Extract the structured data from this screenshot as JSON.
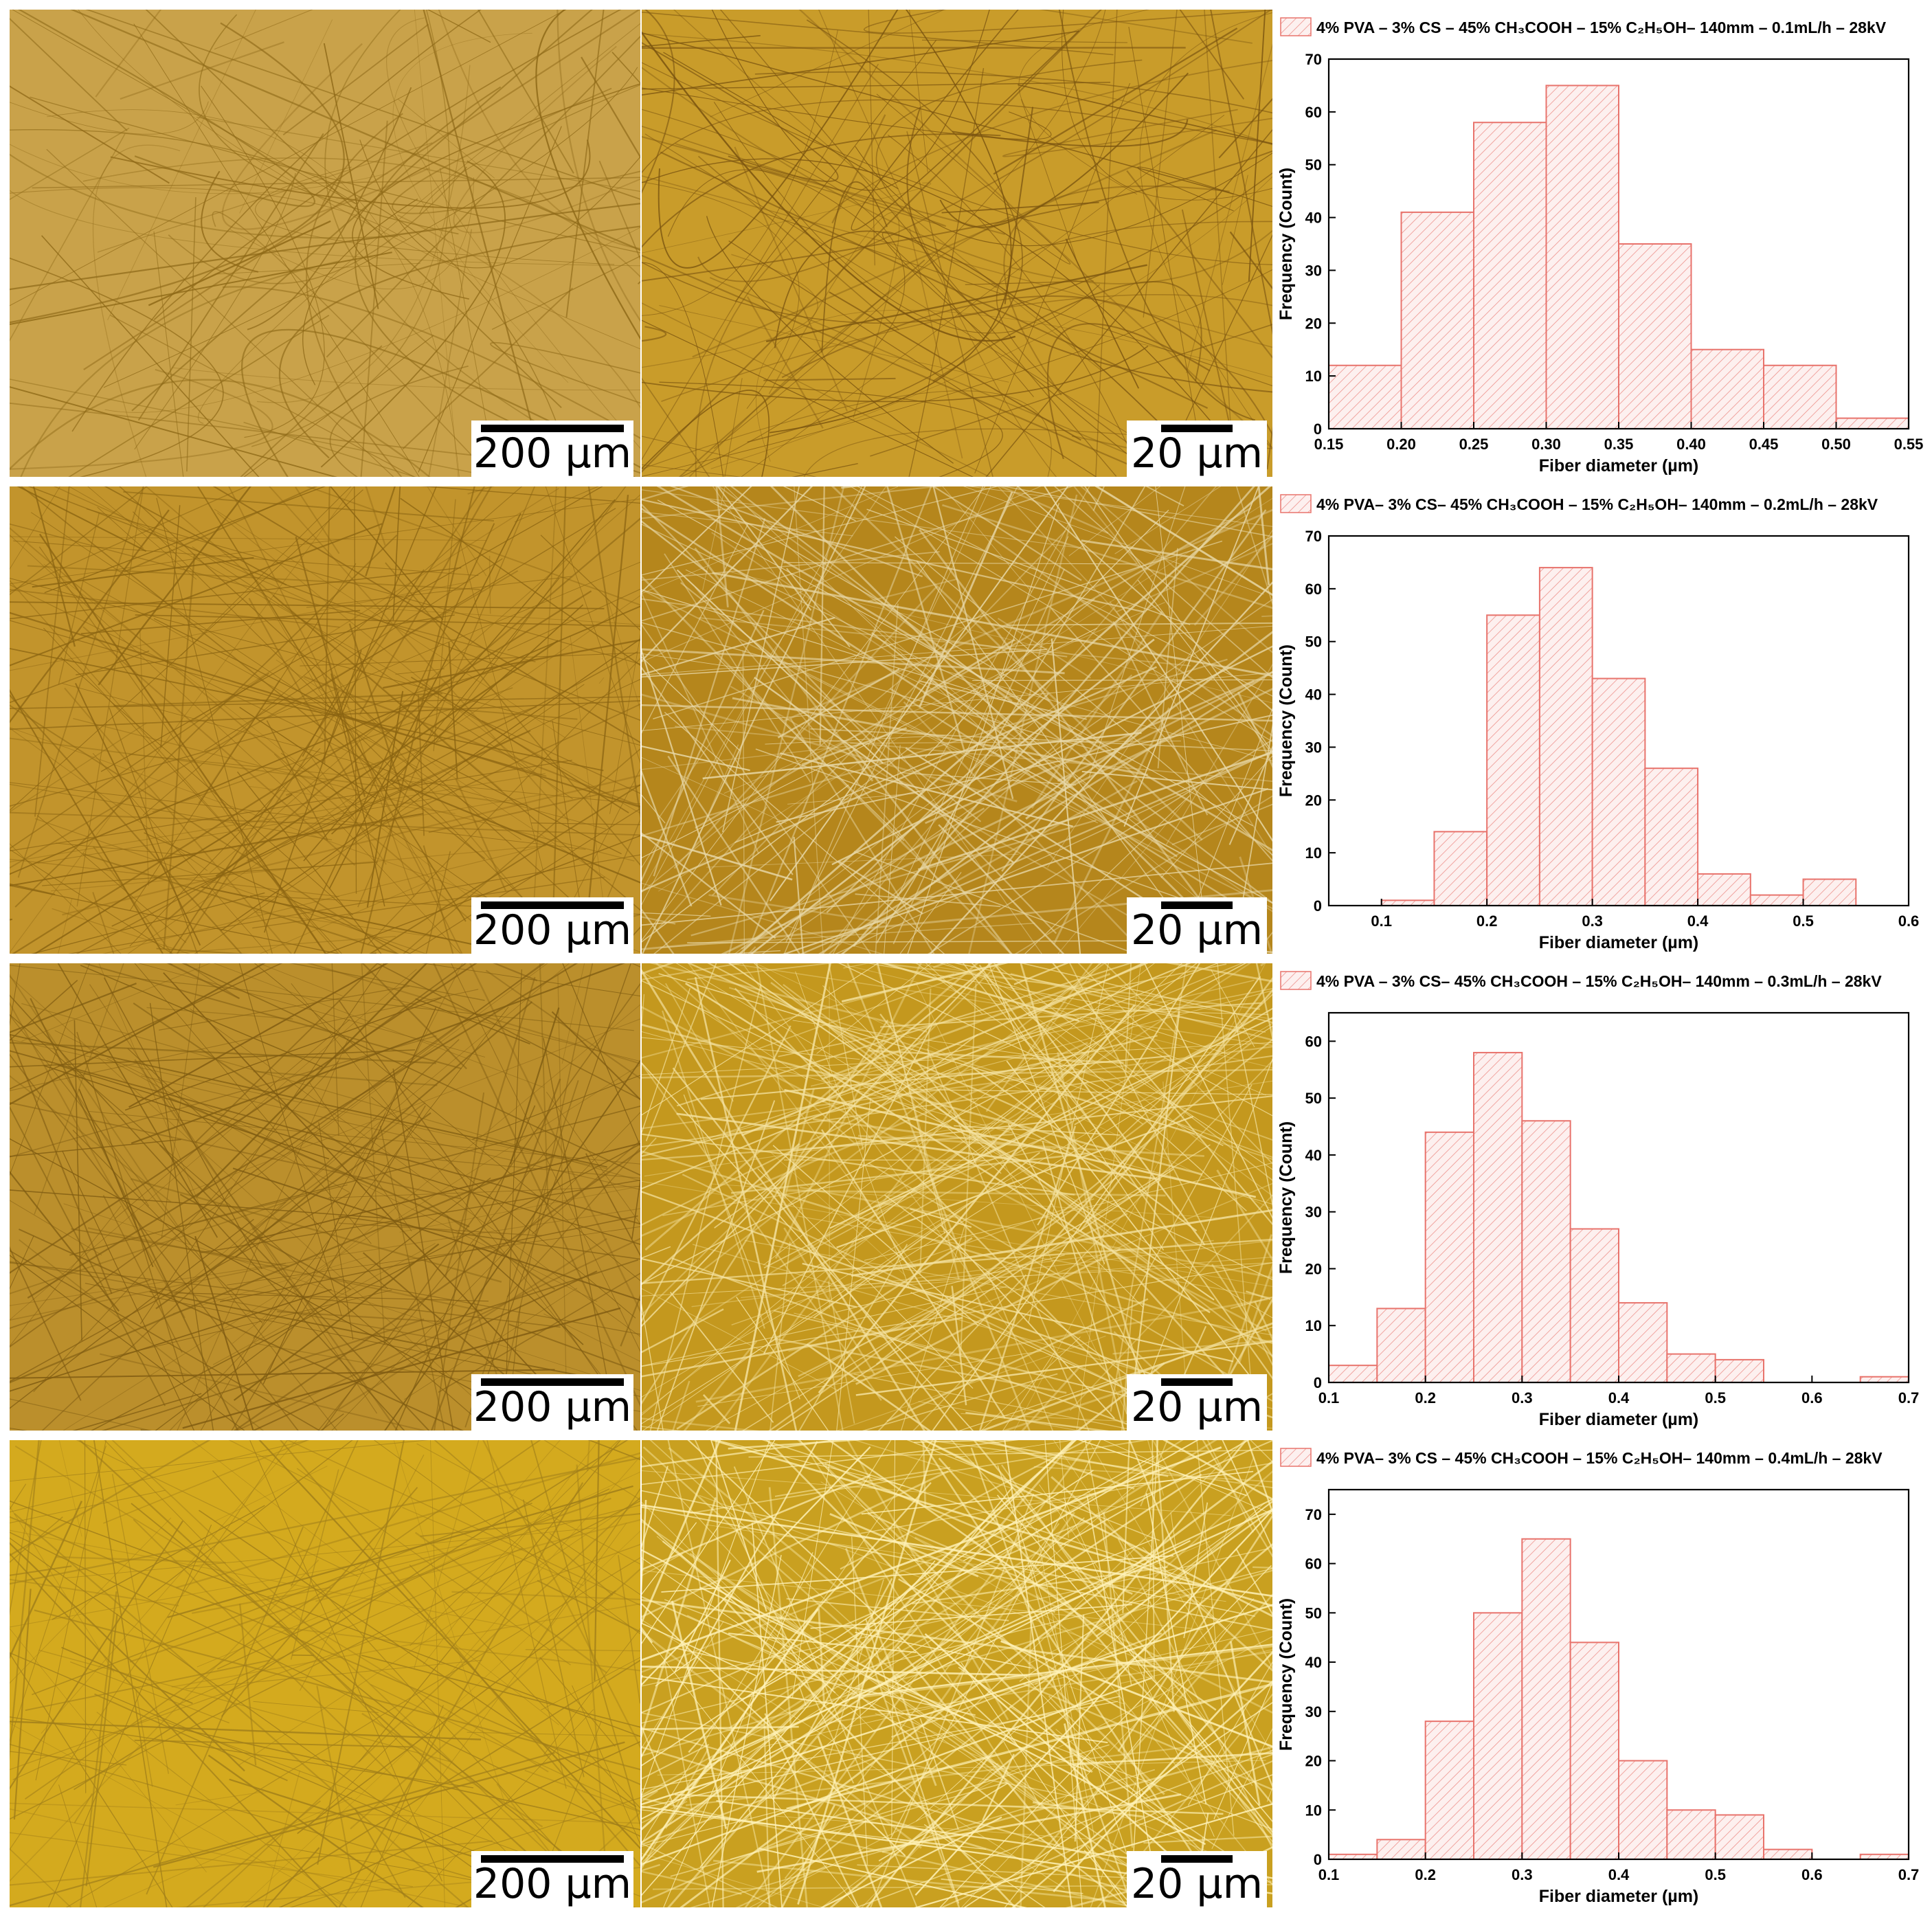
{
  "micrographs": [
    {
      "scale_low": "200 µm",
      "scale_high": "20 µm",
      "tone_low": "#c9a24a",
      "tone_high": "#c99c2a",
      "fiber_low": "#8f6a18",
      "fiber_high": "#7a5410"
    },
    {
      "scale_low": "200 µm",
      "scale_high": "20 µm",
      "tone_low": "#c2942c",
      "tone_high": "#b5861c",
      "fiber_low": "#8a6412",
      "fiber_high": "#e8d8a8"
    },
    {
      "scale_low": "200 µm",
      "scale_high": "20 µm",
      "tone_low": "#bb8f2c",
      "tone_high": "#c4981e",
      "fiber_low": "#7f5c12",
      "fiber_high": "#f4e2a0"
    },
    {
      "scale_low": "200 µm",
      "scale_high": "20 µm",
      "tone_low": "#d4aa1e",
      "tone_high": "#c9a020",
      "fiber_low": "#a07e1a",
      "fiber_high": "#fff2b8"
    }
  ],
  "colors": {
    "bar_stroke": "#e8736c",
    "bar_fill": "#fdf0ef",
    "axis": "#000000"
  },
  "chart_data": [
    {
      "type": "bar",
      "legend": "4% PVA – 3% CS – 45% CH₃COOH – 15% C₂H₅OH– 140mm – 0.1mL/h – 28kV",
      "xlabel": "Fiber diameter (µm)",
      "ylabel": "Frequency (Count)",
      "xlim": [
        0.15,
        0.55
      ],
      "ylim": [
        0,
        70
      ],
      "xticks": [
        "0.15",
        "0.20",
        "0.25",
        "0.30",
        "0.35",
        "0.40",
        "0.45",
        "0.50",
        "0.55"
      ],
      "yticks": [
        "0",
        "10",
        "20",
        "30",
        "40",
        "50",
        "60",
        "70"
      ],
      "bin_width": 0.05,
      "bin_starts": [
        0.15,
        0.2,
        0.25,
        0.3,
        0.35,
        0.4,
        0.45,
        0.5
      ],
      "values": [
        12,
        41,
        58,
        65,
        35,
        15,
        12,
        2
      ]
    },
    {
      "type": "bar",
      "legend": "4% PVA– 3% CS– 45% CH₃COOH – 15% C₂H₅OH– 140mm – 0.2mL/h – 28kV",
      "xlabel": "Fiber diameter (µm)",
      "ylabel": "Frequency (Count)",
      "xlim": [
        0.05,
        0.6
      ],
      "ylim": [
        0,
        70
      ],
      "xticks": [
        "0.1",
        "0.2",
        "0.3",
        "0.4",
        "0.5",
        "0.6"
      ],
      "yticks": [
        "0",
        "10",
        "20",
        "30",
        "40",
        "50",
        "60",
        "70"
      ],
      "bin_width": 0.05,
      "bin_starts": [
        0.1,
        0.15,
        0.2,
        0.25,
        0.3,
        0.35,
        0.4,
        0.45,
        0.5
      ],
      "values": [
        1,
        14,
        55,
        64,
        43,
        26,
        6,
        2,
        5
      ]
    },
    {
      "type": "bar",
      "legend": "4% PVA – 3% CS– 45% CH₃COOH – 15% C₂H₅OH– 140mm – 0.3mL/h – 28kV",
      "xlabel": "Fiber diameter (µm)",
      "ylabel": "Frequency (Count)",
      "xlim": [
        0.1,
        0.7
      ],
      "ylim": [
        0,
        65
      ],
      "xticks": [
        "0.1",
        "0.2",
        "0.3",
        "0.4",
        "0.5",
        "0.6",
        "0.7"
      ],
      "yticks": [
        "0",
        "10",
        "20",
        "30",
        "40",
        "50",
        "60"
      ],
      "bin_width": 0.05,
      "bin_starts": [
        0.1,
        0.15,
        0.2,
        0.25,
        0.3,
        0.35,
        0.4,
        0.45,
        0.5,
        0.55,
        0.6,
        0.65
      ],
      "values": [
        3,
        13,
        44,
        58,
        46,
        27,
        14,
        5,
        4,
        0,
        0,
        1
      ]
    },
    {
      "type": "bar",
      "legend": "4% PVA– 3% CS – 45% CH₃COOH – 15% C₂H₅OH– 140mm – 0.4mL/h – 28kV",
      "xlabel": "Fiber diameter (µm)",
      "ylabel": "Frequency (Count)",
      "xlim": [
        0.1,
        0.7
      ],
      "ylim": [
        0,
        75
      ],
      "xticks": [
        "0.1",
        "0.2",
        "0.3",
        "0.4",
        "0.5",
        "0.6",
        "0.7"
      ],
      "yticks": [
        "0",
        "10",
        "20",
        "30",
        "40",
        "50",
        "60",
        "70"
      ],
      "bin_width": 0.05,
      "bin_starts": [
        0.1,
        0.15,
        0.2,
        0.25,
        0.3,
        0.35,
        0.4,
        0.45,
        0.5,
        0.55,
        0.6,
        0.65
      ],
      "values": [
        1,
        4,
        28,
        50,
        65,
        44,
        20,
        10,
        9,
        2,
        0,
        1
      ]
    }
  ]
}
